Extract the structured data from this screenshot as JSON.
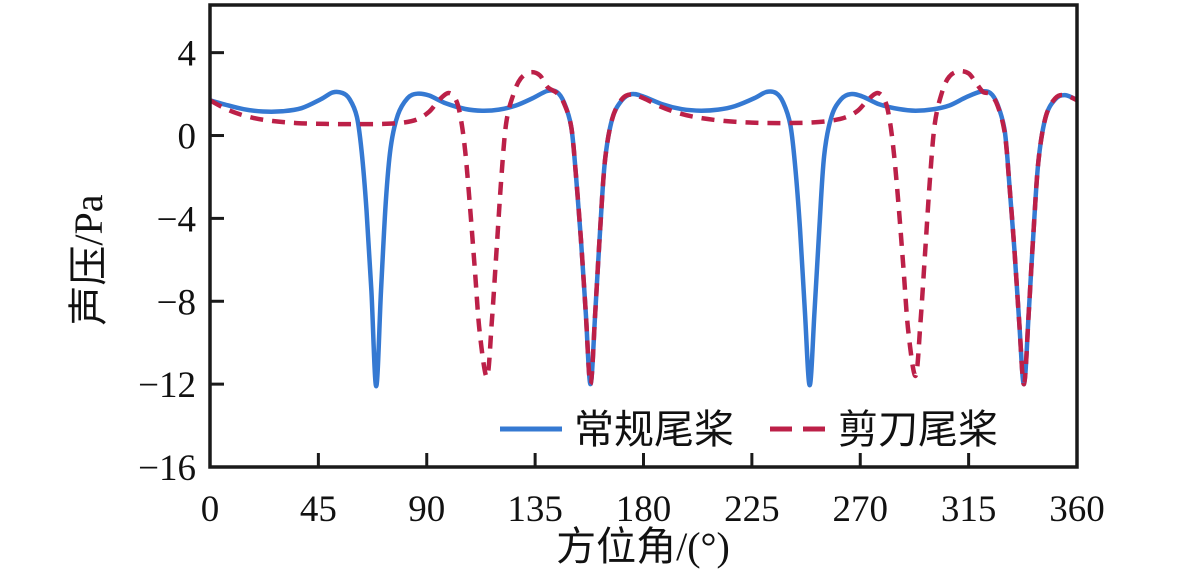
{
  "figure": {
    "background": "#ffffff",
    "frame_color": "#1a1a1a",
    "text_color": "#111111"
  },
  "chart_data": {
    "type": "line",
    "title": "",
    "xlabel": "方位角/(°)",
    "ylabel": "声压/Pa",
    "xlim": [
      0,
      360
    ],
    "ylim": [
      -16,
      6.3
    ],
    "xticks": [
      0,
      45,
      90,
      135,
      180,
      225,
      270,
      315,
      360
    ],
    "yticks": [
      4,
      0,
      -4,
      -8,
      -12,
      -16
    ],
    "grid": false,
    "legend_position": "inside lower center",
    "series": [
      {
        "name": "常规尾桨",
        "color": "#3579d2",
        "line_style": "solid",
        "line_width": 4.5,
        "points": [
          [
            0,
            1.7
          ],
          [
            6,
            1.5
          ],
          [
            14,
            1.27
          ],
          [
            22,
            1.16
          ],
          [
            30,
            1.17
          ],
          [
            38,
            1.32
          ],
          [
            46,
            1.75
          ],
          [
            51,
            2.08
          ],
          [
            55,
            2.05
          ],
          [
            58,
            1.75
          ],
          [
            61,
            0.9
          ],
          [
            63,
            -0.8
          ],
          [
            65,
            -3.6
          ],
          [
            67,
            -7.5
          ],
          [
            69,
            -12.1
          ],
          [
            71,
            -7.5
          ],
          [
            73,
            -3.2
          ],
          [
            75,
            -0.6
          ],
          [
            78,
            1.0
          ],
          [
            82,
            1.8
          ],
          [
            86,
            2.02
          ],
          [
            91,
            1.93
          ],
          [
            98,
            1.55
          ],
          [
            106,
            1.28
          ],
          [
            113,
            1.2
          ],
          [
            120,
            1.25
          ],
          [
            127,
            1.45
          ],
          [
            134,
            1.8
          ],
          [
            140,
            2.15
          ],
          [
            144,
            2.1
          ],
          [
            147,
            1.6
          ],
          [
            150,
            0.4
          ],
          [
            152,
            -2.0
          ],
          [
            154,
            -5.0
          ],
          [
            156,
            -8.5
          ],
          [
            158,
            -12.0
          ],
          [
            160,
            -8.5
          ],
          [
            162,
            -4.5
          ],
          [
            164,
            -1.2
          ],
          [
            167,
            0.8
          ],
          [
            171,
            1.7
          ],
          [
            175,
            2.0
          ],
          [
            180,
            1.88
          ],
          [
            188,
            1.5
          ],
          [
            196,
            1.27
          ],
          [
            204,
            1.2
          ],
          [
            211,
            1.25
          ],
          [
            218,
            1.42
          ],
          [
            226,
            1.8
          ],
          [
            231,
            2.1
          ],
          [
            235,
            2.05
          ],
          [
            238,
            1.6
          ],
          [
            241,
            0.5
          ],
          [
            243,
            -1.5
          ],
          [
            245,
            -4.5
          ],
          [
            247,
            -8.5
          ],
          [
            249,
            -12.05
          ],
          [
            251,
            -8.5
          ],
          [
            253,
            -4.5
          ],
          [
            255,
            -1.0
          ],
          [
            258,
            0.9
          ],
          [
            262,
            1.75
          ],
          [
            266,
            2.0
          ],
          [
            271,
            1.88
          ],
          [
            278,
            1.5
          ],
          [
            286,
            1.28
          ],
          [
            293,
            1.2
          ],
          [
            300,
            1.26
          ],
          [
            307,
            1.45
          ],
          [
            314,
            1.85
          ],
          [
            320,
            2.12
          ],
          [
            324,
            2.05
          ],
          [
            327,
            1.5
          ],
          [
            330,
            0.2
          ],
          [
            332,
            -2.5
          ],
          [
            334,
            -5.5
          ],
          [
            336,
            -9.0
          ],
          [
            338,
            -12.0
          ],
          [
            340,
            -8.5
          ],
          [
            342,
            -4.5
          ],
          [
            344,
            -1.2
          ],
          [
            347,
            0.9
          ],
          [
            351,
            1.75
          ],
          [
            355,
            1.95
          ],
          [
            360,
            1.72
          ]
        ]
      },
      {
        "name": "剪刀尾桨",
        "color": "#bc2048",
        "line_style": "dashed",
        "line_width": 4.5,
        "points": [
          [
            0,
            1.7
          ],
          [
            5,
            1.38
          ],
          [
            11,
            1.08
          ],
          [
            18,
            0.85
          ],
          [
            26,
            0.7
          ],
          [
            36,
            0.6
          ],
          [
            48,
            0.56
          ],
          [
            60,
            0.55
          ],
          [
            72,
            0.56
          ],
          [
            80,
            0.62
          ],
          [
            86,
            0.78
          ],
          [
            91,
            1.15
          ],
          [
            95,
            1.7
          ],
          [
            99,
            2.05
          ],
          [
            102,
            1.75
          ],
          [
            104,
            0.9
          ],
          [
            106,
            -0.8
          ],
          [
            108,
            -3.5
          ],
          [
            110,
            -6.5
          ],
          [
            112,
            -9.5
          ],
          [
            115,
            -11.65
          ],
          [
            117,
            -9.0
          ],
          [
            119,
            -5.5
          ],
          [
            121,
            -2.0
          ],
          [
            123,
            0.6
          ],
          [
            126,
            2.0
          ],
          [
            129,
            2.75
          ],
          [
            133,
            3.05
          ],
          [
            137,
            2.9
          ],
          [
            140,
            2.35
          ],
          [
            144,
            2.05
          ],
          [
            147,
            1.55
          ],
          [
            150,
            0.4
          ],
          [
            152,
            -2.0
          ],
          [
            154,
            -5.0
          ],
          [
            156,
            -8.5
          ],
          [
            158,
            -12.0
          ],
          [
            160,
            -8.5
          ],
          [
            162,
            -4.5
          ],
          [
            164,
            -1.2
          ],
          [
            167,
            0.8
          ],
          [
            171,
            1.75
          ],
          [
            175,
            1.98
          ],
          [
            180,
            1.8
          ],
          [
            187,
            1.4
          ],
          [
            194,
            1.1
          ],
          [
            202,
            0.88
          ],
          [
            212,
            0.72
          ],
          [
            224,
            0.63
          ],
          [
            236,
            0.6
          ],
          [
            248,
            0.62
          ],
          [
            257,
            0.7
          ],
          [
            264,
            0.88
          ],
          [
            269,
            1.2
          ],
          [
            273,
            1.7
          ],
          [
            277,
            2.05
          ],
          [
            280,
            1.75
          ],
          [
            282,
            0.9
          ],
          [
            284,
            -0.9
          ],
          [
            286,
            -3.5
          ],
          [
            288,
            -6.5
          ],
          [
            290,
            -9.5
          ],
          [
            293,
            -11.6
          ],
          [
            295,
            -9.0
          ],
          [
            297,
            -5.5
          ],
          [
            299,
            -2.0
          ],
          [
            301,
            0.6
          ],
          [
            304,
            2.1
          ],
          [
            307,
            2.85
          ],
          [
            311,
            3.1
          ],
          [
            315,
            3.0
          ],
          [
            318,
            2.55
          ],
          [
            321,
            2.1
          ],
          [
            324,
            2.0
          ],
          [
            327,
            1.45
          ],
          [
            330,
            0.1
          ],
          [
            332,
            -2.5
          ],
          [
            334,
            -5.5
          ],
          [
            336,
            -9.0
          ],
          [
            338,
            -12.0
          ],
          [
            340,
            -8.5
          ],
          [
            342,
            -4.5
          ],
          [
            344,
            -1.2
          ],
          [
            347,
            0.9
          ],
          [
            351,
            1.8
          ],
          [
            355,
            1.95
          ],
          [
            360,
            1.7
          ]
        ]
      }
    ]
  },
  "legend": {
    "items": [
      {
        "label": "常规尾桨",
        "swatch": "solid-blue-line"
      },
      {
        "label": "剪刀尾桨",
        "swatch": "dashed-crimson-line"
      }
    ]
  }
}
